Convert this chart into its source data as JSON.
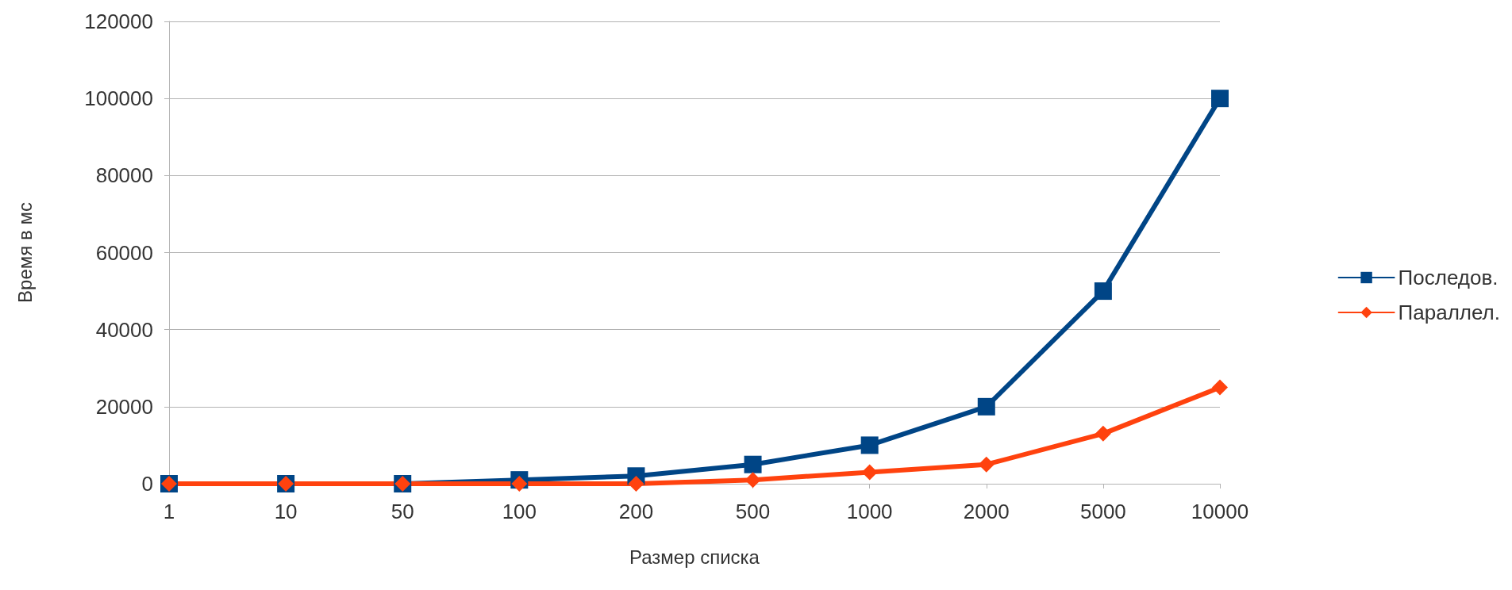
{
  "chart_data": {
    "type": "line",
    "xlabel": "Размер списка",
    "ylabel": "Время в мс",
    "categories": [
      "1",
      "10",
      "50",
      "100",
      "200",
      "500",
      "1000",
      "2000",
      "5000",
      "10000"
    ],
    "series": [
      {
        "name": "Последов.",
        "color": "#004586",
        "marker": "square",
        "values": [
          0,
          0,
          0,
          1000,
          2000,
          5000,
          10000,
          20000,
          50000,
          100000
        ]
      },
      {
        "name": "Параллел.",
        "color": "#ff420e",
        "marker": "diamond",
        "values": [
          0,
          0,
          0,
          0,
          0,
          1000,
          3000,
          5000,
          13000,
          25000
        ]
      }
    ],
    "ylim": [
      0,
      120000
    ],
    "yticks": [
      0,
      20000,
      40000,
      60000,
      80000,
      100000,
      120000
    ],
    "grid": "y",
    "legend": "right",
    "line_style": "solid"
  }
}
